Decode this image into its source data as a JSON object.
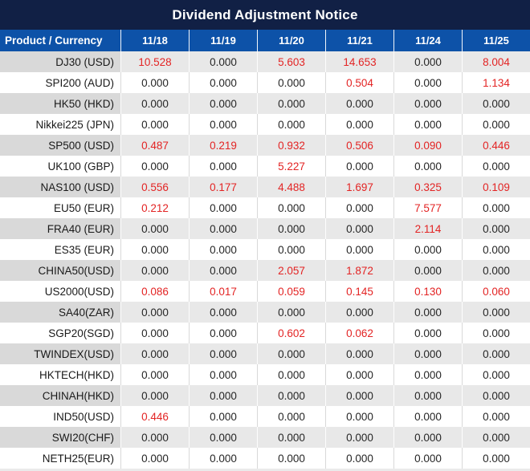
{
  "title": "Dividend Adjustment Notice",
  "table": {
    "product_header": "Product / Currency",
    "date_headers": [
      "11/18",
      "11/19",
      "11/20",
      "11/21",
      "11/24",
      "11/25"
    ],
    "rows": [
      {
        "product": "DJ30 (USD)",
        "values": [
          "10.528",
          "0.000",
          "5.603",
          "14.653",
          "0.000",
          "8.004"
        ]
      },
      {
        "product": "SPI200 (AUD)",
        "values": [
          "0.000",
          "0.000",
          "0.000",
          "0.504",
          "0.000",
          "1.134"
        ]
      },
      {
        "product": "HK50 (HKD)",
        "values": [
          "0.000",
          "0.000",
          "0.000",
          "0.000",
          "0.000",
          "0.000"
        ]
      },
      {
        "product": "Nikkei225 (JPN)",
        "values": [
          "0.000",
          "0.000",
          "0.000",
          "0.000",
          "0.000",
          "0.000"
        ]
      },
      {
        "product": "SP500 (USD)",
        "values": [
          "0.487",
          "0.219",
          "0.932",
          "0.506",
          "0.090",
          "0.446"
        ]
      },
      {
        "product": "UK100 (GBP)",
        "values": [
          "0.000",
          "0.000",
          "5.227",
          "0.000",
          "0.000",
          "0.000"
        ]
      },
      {
        "product": "NAS100 (USD)",
        "values": [
          "0.556",
          "0.177",
          "4.488",
          "1.697",
          "0.325",
          "0.109"
        ]
      },
      {
        "product": "EU50 (EUR)",
        "values": [
          "0.212",
          "0.000",
          "0.000",
          "0.000",
          "7.577",
          "0.000"
        ]
      },
      {
        "product": "FRA40 (EUR)",
        "values": [
          "0.000",
          "0.000",
          "0.000",
          "0.000",
          "2.114",
          "0.000"
        ]
      },
      {
        "product": "ES35 (EUR)",
        "values": [
          "0.000",
          "0.000",
          "0.000",
          "0.000",
          "0.000",
          "0.000"
        ]
      },
      {
        "product": "CHINA50(USD)",
        "values": [
          "0.000",
          "0.000",
          "2.057",
          "1.872",
          "0.000",
          "0.000"
        ]
      },
      {
        "product": "US2000(USD)",
        "values": [
          "0.086",
          "0.017",
          "0.059",
          "0.145",
          "0.130",
          "0.060"
        ]
      },
      {
        "product": "SA40(ZAR)",
        "values": [
          "0.000",
          "0.000",
          "0.000",
          "0.000",
          "0.000",
          "0.000"
        ]
      },
      {
        "product": "SGP20(SGD)",
        "values": [
          "0.000",
          "0.000",
          "0.602",
          "0.062",
          "0.000",
          "0.000"
        ]
      },
      {
        "product": "TWINDEX(USD)",
        "values": [
          "0.000",
          "0.000",
          "0.000",
          "0.000",
          "0.000",
          "0.000"
        ]
      },
      {
        "product": "HKTECH(HKD)",
        "values": [
          "0.000",
          "0.000",
          "0.000",
          "0.000",
          "0.000",
          "0.000"
        ]
      },
      {
        "product": "CHINAH(HKD)",
        "values": [
          "0.000",
          "0.000",
          "0.000",
          "0.000",
          "0.000",
          "0.000"
        ]
      },
      {
        "product": "IND50(USD)",
        "values": [
          "0.446",
          "0.000",
          "0.000",
          "0.000",
          "0.000",
          "0.000"
        ]
      },
      {
        "product": "SWI20(CHF)",
        "values": [
          "0.000",
          "0.000",
          "0.000",
          "0.000",
          "0.000",
          "0.000"
        ]
      },
      {
        "product": "NETH25(EUR)",
        "values": [
          "0.000",
          "0.000",
          "0.000",
          "0.000",
          "0.000",
          "0.000"
        ]
      }
    ]
  },
  "colors": {
    "title_bg": "#112045",
    "header_bg": "#0d52a8",
    "row_alt_bg": "#e8e8e8",
    "product_alt_bg": "#d9d9d9",
    "value_red": "#e32424",
    "value_black": "#262626",
    "divider_gray": "#d9d9d9",
    "divider_white": "#fdfdfd"
  }
}
